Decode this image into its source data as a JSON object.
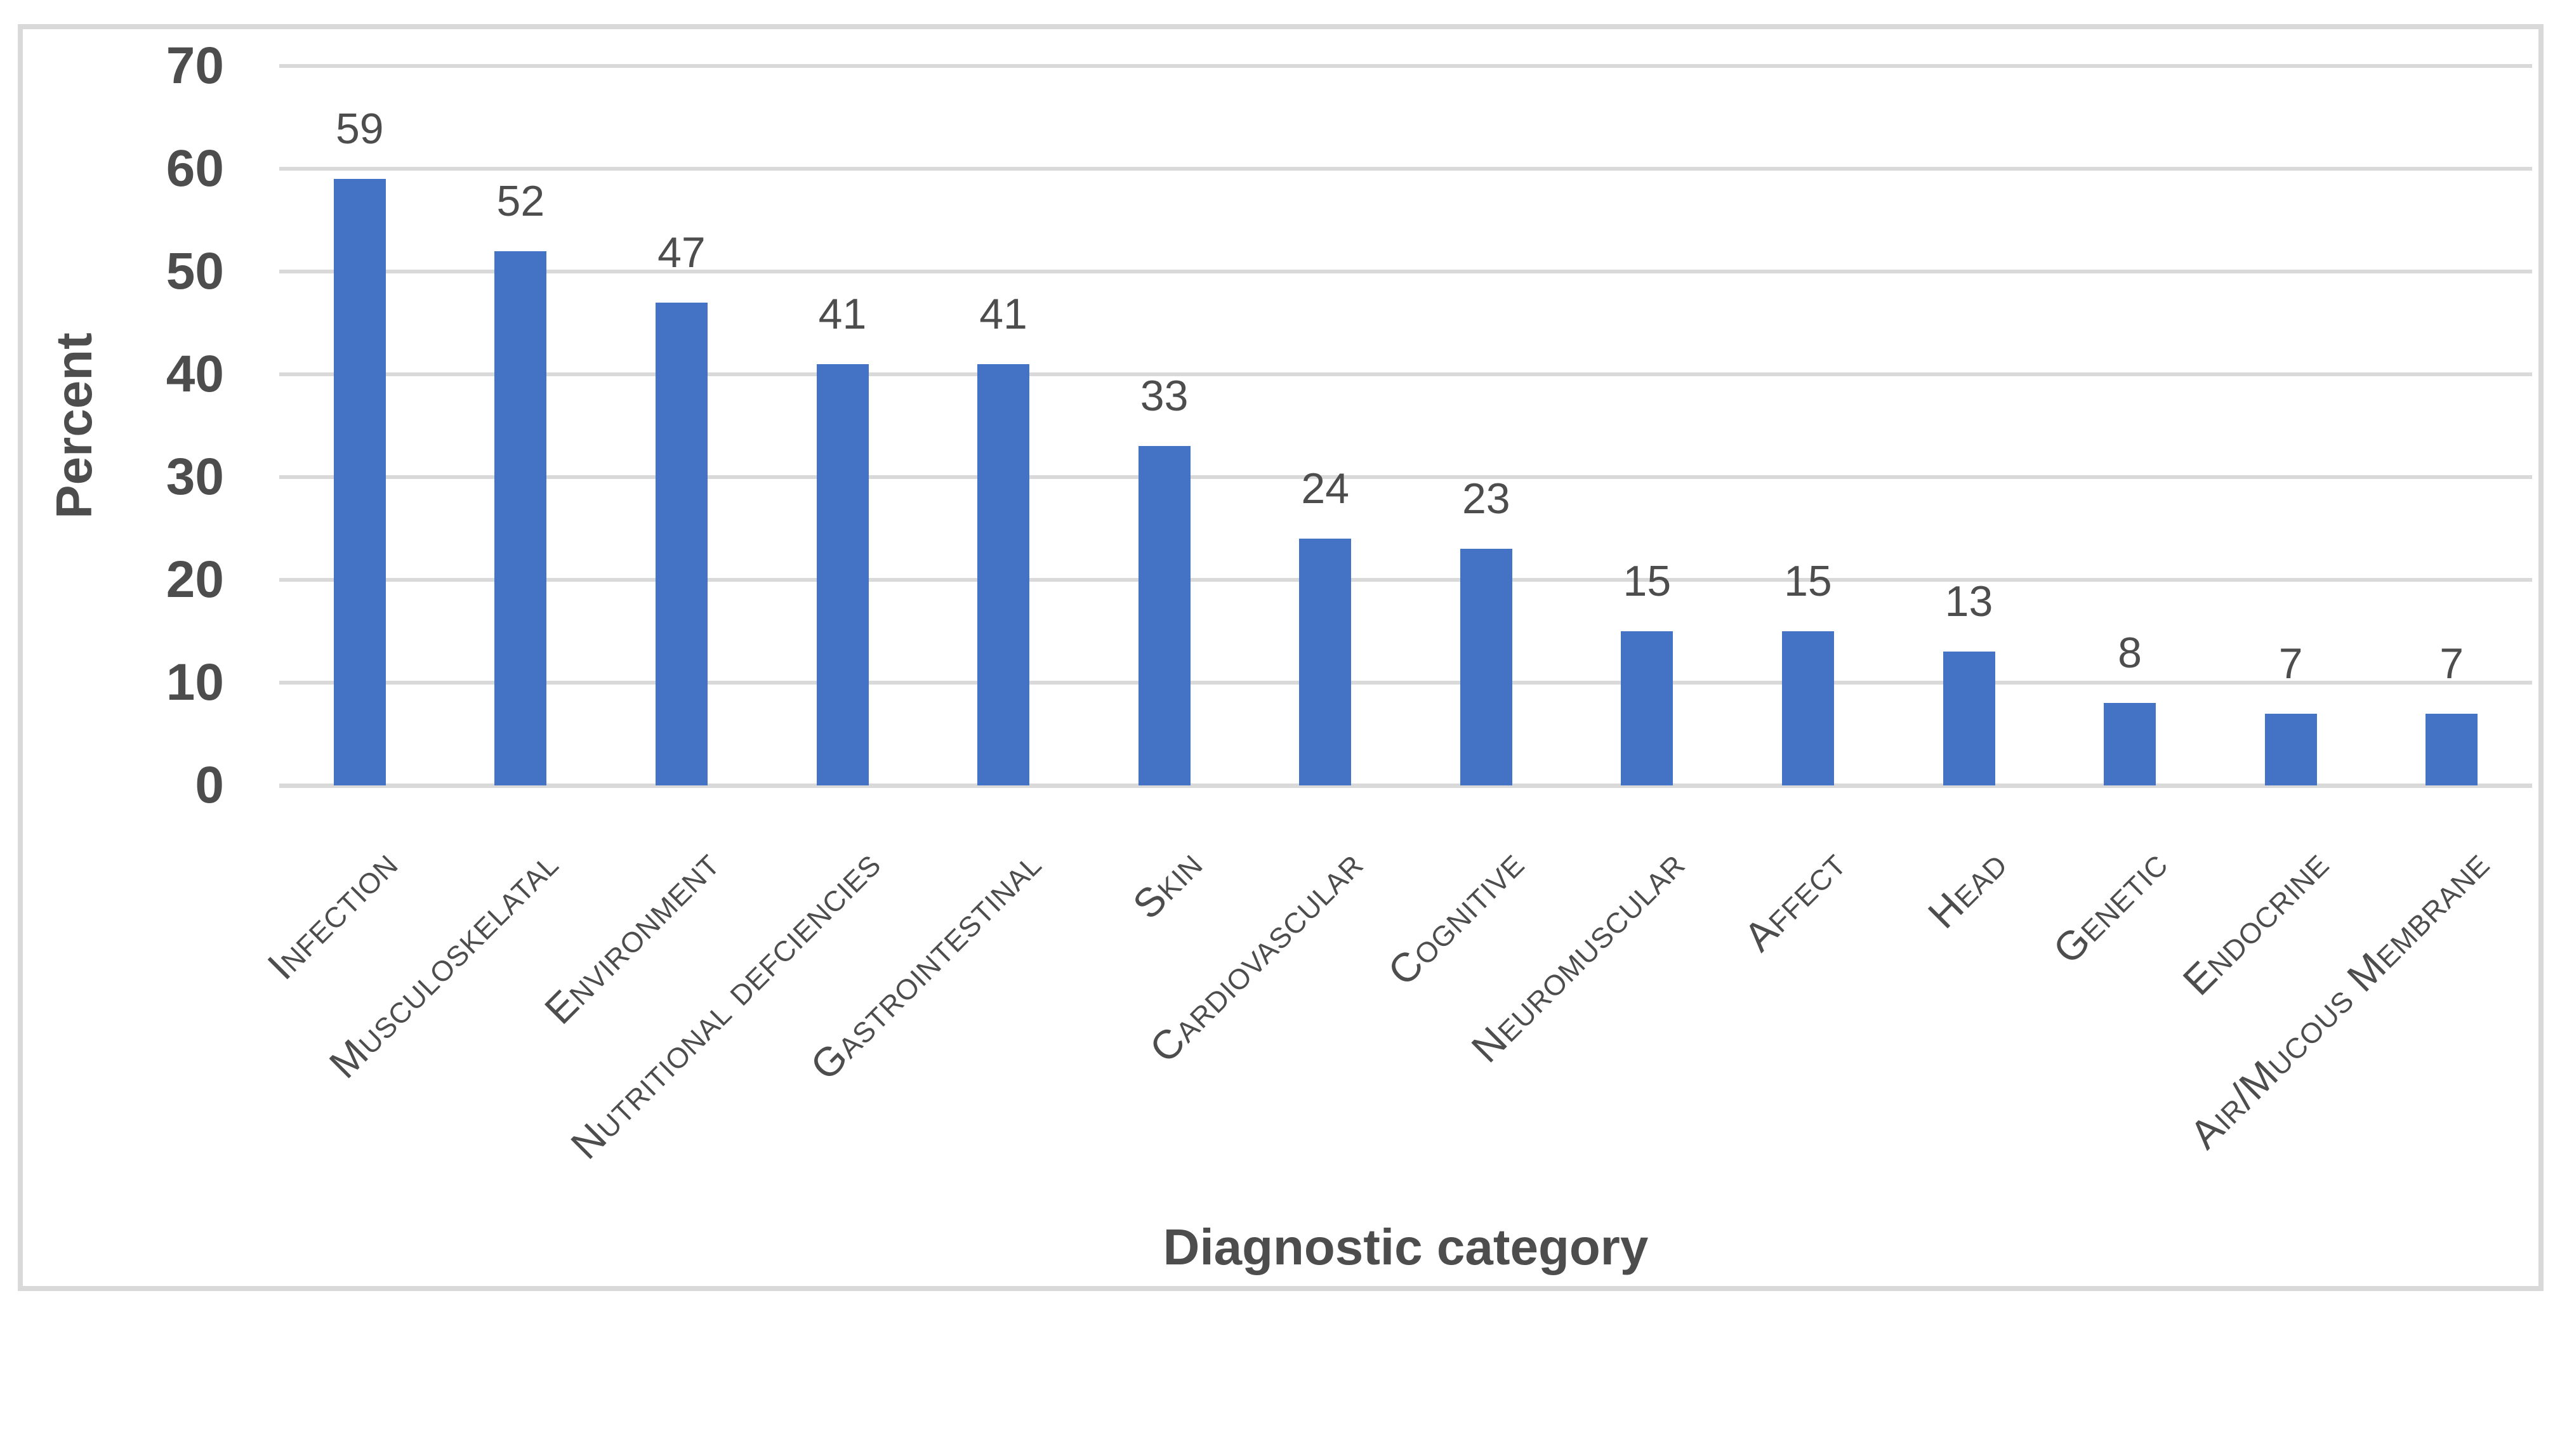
{
  "chart_data": {
    "type": "bar",
    "title": "",
    "categories": [
      "Infection",
      "Musculoskelatal",
      "Environment",
      "Nutritional defciencies",
      "Gastrointestinal",
      "Skin",
      "Cardiovascular",
      "Cognitive",
      "Neuromuscular",
      "Affect",
      "Head",
      "Genetic",
      "Endocrine",
      "Air/Mucous Membrane"
    ],
    "values": [
      59,
      52,
      47,
      41,
      41,
      33,
      24,
      23,
      15,
      15,
      13,
      8,
      7,
      7
    ],
    "data_labels": [
      59,
      52,
      47,
      41,
      41,
      33,
      24,
      23,
      15,
      15,
      13,
      8,
      7,
      7
    ],
    "xlabel": "Diagnostic category",
    "ylabel": "Percent",
    "ylim": [
      0,
      70
    ],
    "yticks": [
      0,
      10,
      20,
      30,
      40,
      50,
      60,
      70
    ],
    "grid": true,
    "legend": "none",
    "category_label_rotation_deg": 45,
    "colors": {
      "bar": "#4472C4",
      "gridline": "#D9D9D9",
      "axis_line": "#D9D9D9",
      "frame_border": "#D9D9D9",
      "text": "#4D4D4D"
    }
  }
}
